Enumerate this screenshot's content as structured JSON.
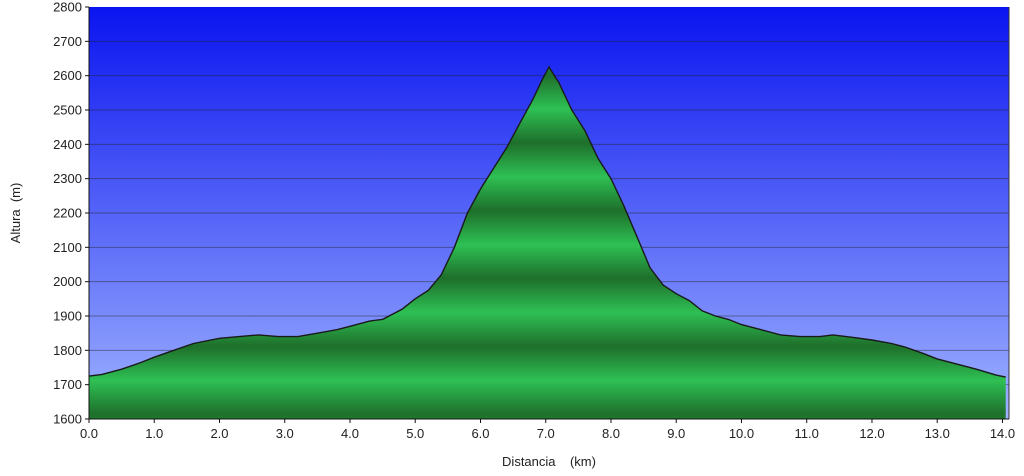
{
  "chart_data": {
    "type": "area",
    "xlabel": "Distancia    (km)",
    "ylabel": "Altura  (m)",
    "xlim": [
      0,
      14.1
    ],
    "ylim": [
      1600,
      2800
    ],
    "xticks": [
      0,
      1,
      2,
      3,
      4,
      5,
      6,
      7,
      8,
      9,
      10,
      11,
      12,
      13,
      14
    ],
    "xtick_labels": [
      "0.0",
      "1.0",
      "2.0",
      "3.0",
      "4.0",
      "5.0",
      "6.0",
      "7.0",
      "8.0",
      "9.0",
      "10.0",
      "11.0",
      "12.0",
      "13.0",
      "14.0"
    ],
    "yticks": [
      1600,
      1700,
      1800,
      1900,
      2000,
      2100,
      2200,
      2300,
      2400,
      2500,
      2600,
      2700,
      2800
    ],
    "ytick_labels": [
      "1600",
      "1700",
      "1800",
      "1900",
      "2000",
      "2100",
      "2200",
      "2300",
      "2400",
      "2500",
      "2600",
      "2700",
      "2800"
    ],
    "grid": true,
    "series": [
      {
        "x": [
          0,
          0.2,
          0.5,
          0.8,
          1.0,
          1.3,
          1.6,
          2.0,
          2.3,
          2.6,
          2.9,
          3.2,
          3.5,
          3.8,
          4.0,
          4.3,
          4.5,
          4.8,
          5.0,
          5.2,
          5.4,
          5.6,
          5.8,
          6.0,
          6.2,
          6.4,
          6.6,
          6.8,
          6.95,
          7.05,
          7.2,
          7.4,
          7.6,
          7.8,
          8.0,
          8.2,
          8.4,
          8.6,
          8.8,
          9.0,
          9.2,
          9.4,
          9.6,
          9.8,
          10.0,
          10.3,
          10.6,
          10.9,
          11.2,
          11.4,
          11.7,
          12.0,
          12.3,
          12.5,
          12.8,
          13.0,
          13.3,
          13.6,
          13.9,
          14.05
        ],
        "y": [
          1725,
          1730,
          1745,
          1765,
          1780,
          1800,
          1820,
          1835,
          1840,
          1845,
          1840,
          1840,
          1850,
          1860,
          1870,
          1885,
          1890,
          1920,
          1950,
          1975,
          2020,
          2100,
          2200,
          2270,
          2330,
          2390,
          2460,
          2530,
          2590,
          2625,
          2580,
          2500,
          2440,
          2360,
          2300,
          2220,
          2130,
          2040,
          1990,
          1965,
          1945,
          1915,
          1900,
          1890,
          1875,
          1860,
          1845,
          1840,
          1840,
          1845,
          1838,
          1830,
          1820,
          1810,
          1790,
          1775,
          1760,
          1745,
          1728,
          1722
        ]
      }
    ],
    "colors": {
      "sky_top": "#0a14f0",
      "sky_bottom": "#9fb3ff",
      "fill_light": "#2ec054",
      "fill_dark": "#1e6f2a",
      "outline": "#1a1a1a",
      "grid": "#222222"
    }
  }
}
